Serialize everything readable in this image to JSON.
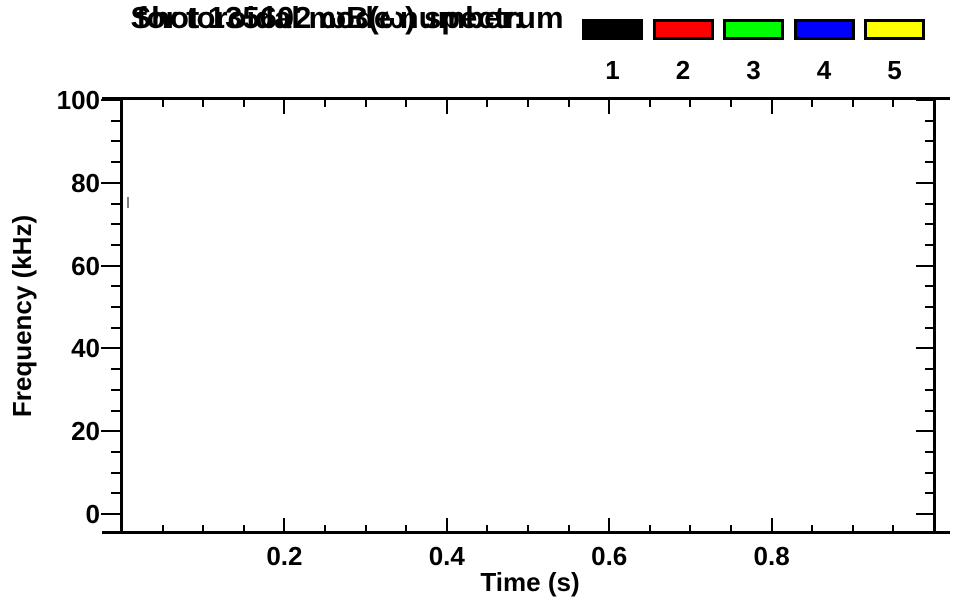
{
  "chart_data": {
    "type": "scatter",
    "title": "Shot 135602 ωB(ω) spectrum",
    "subtitle": "for toroidal mode number:",
    "xlabel": "Time (s)",
    "ylabel": "Frequency (kHz)",
    "xlim": [
      0,
      1.0
    ],
    "ylim": [
      0,
      100
    ],
    "x_major_ticks": [
      0.2,
      0.4,
      0.6,
      0.8
    ],
    "x_major_tick_labels": [
      "0.2",
      "0.4",
      "0.6",
      "0.8"
    ],
    "x_minor_interval": 0.05,
    "y_major_ticks": [
      0,
      20,
      40,
      60,
      80,
      100
    ],
    "y_major_tick_labels": [
      "0",
      "20",
      "40",
      "60",
      "80",
      "100"
    ],
    "y_minor_interval": 5,
    "grid": false,
    "background": "#ffffff",
    "axis_color": "#000000",
    "legend": {
      "position": "top-right",
      "entries": [
        {
          "label": "1",
          "color": "#000000"
        },
        {
          "label": "2",
          "color": "#ff0000"
        },
        {
          "label": "3",
          "color": "#00ff00"
        },
        {
          "label": "4",
          "color": "#0000ff"
        },
        {
          "label": "5",
          "color": "#ffff00"
        }
      ]
    },
    "series": [
      {
        "name": "faint unassigned mark",
        "color": "#7f7f7f",
        "points": [
          {
            "time_s": 0.007,
            "freq_khz_min": 74.0,
            "freq_khz_max": 76.5
          }
        ]
      }
    ]
  }
}
